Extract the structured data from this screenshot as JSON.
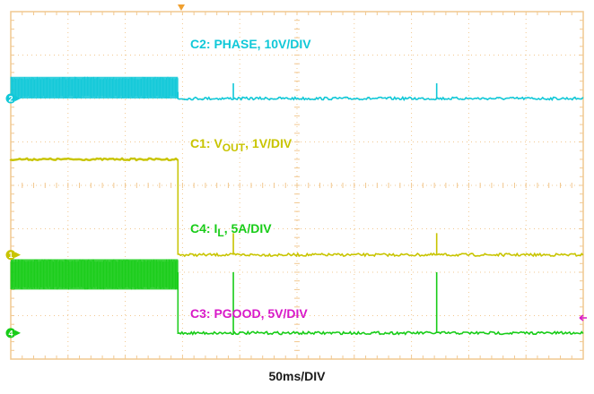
{
  "chart_data": {
    "type": "line",
    "title": "",
    "xlabel": "50ms/DIV",
    "grid": true,
    "divisions": {
      "x": 10,
      "y": 8
    },
    "event_time_div": 1.0,
    "series": [
      {
        "id": "C2",
        "name": "C2: PHASE, 10V/DIV",
        "label": {
          "prefix": "C2: PHASE, 10V/DIV",
          "sub": "",
          "suffix": ""
        },
        "marker": "2",
        "color": "#10c8d8",
        "ground_div": 6.0,
        "before_div": 6.15,
        "after_div": 6.0,
        "switching_band_before": [
          6.0,
          6.5
        ],
        "spikes_time_div": [
          4.05,
          7.75
        ],
        "spike_peak_div": 6.35
      },
      {
        "id": "C1",
        "name": "C1: VOUT, 1V/DIV",
        "label": {
          "prefix": "C1: V",
          "sub": "OUT",
          "suffix": ", 1V/DIV"
        },
        "marker": "1",
        "color": "#c8c400",
        "ground_div": 2.4,
        "before_div": 4.6,
        "after_div": 2.4,
        "spikes_time_div": [
          4.05,
          7.75
        ],
        "spike_peak_div": 2.9
      },
      {
        "id": "C4",
        "name": "C4: IL, 5A/DIV",
        "label": {
          "prefix": "C4: I",
          "sub": "L",
          "suffix": ", 5A/DIV"
        },
        "marker": "4",
        "color": "#18cc18",
        "ground_div": 0.6,
        "before_div": 2.0,
        "after_div": 0.6,
        "switching_band_before": [
          1.6,
          2.3
        ],
        "spikes_time_div": [
          4.05,
          7.75
        ],
        "spike_peak_div": 2.0
      },
      {
        "id": "C3",
        "name": "C3: PGOOD, 5V/DIV",
        "label": {
          "prefix": "C3: PGOOD, 5V/DIV",
          "sub": "",
          "suffix": ""
        },
        "marker": "3",
        "color": "#d818c8",
        "ground_div": -1.0,
        "before_div": -0.4,
        "after_div": -1.05,
        "spikes_time_div": [],
        "spike_peak_div": -1.0
      }
    ]
  },
  "labels": {
    "timebase": "50ms/DIV"
  }
}
